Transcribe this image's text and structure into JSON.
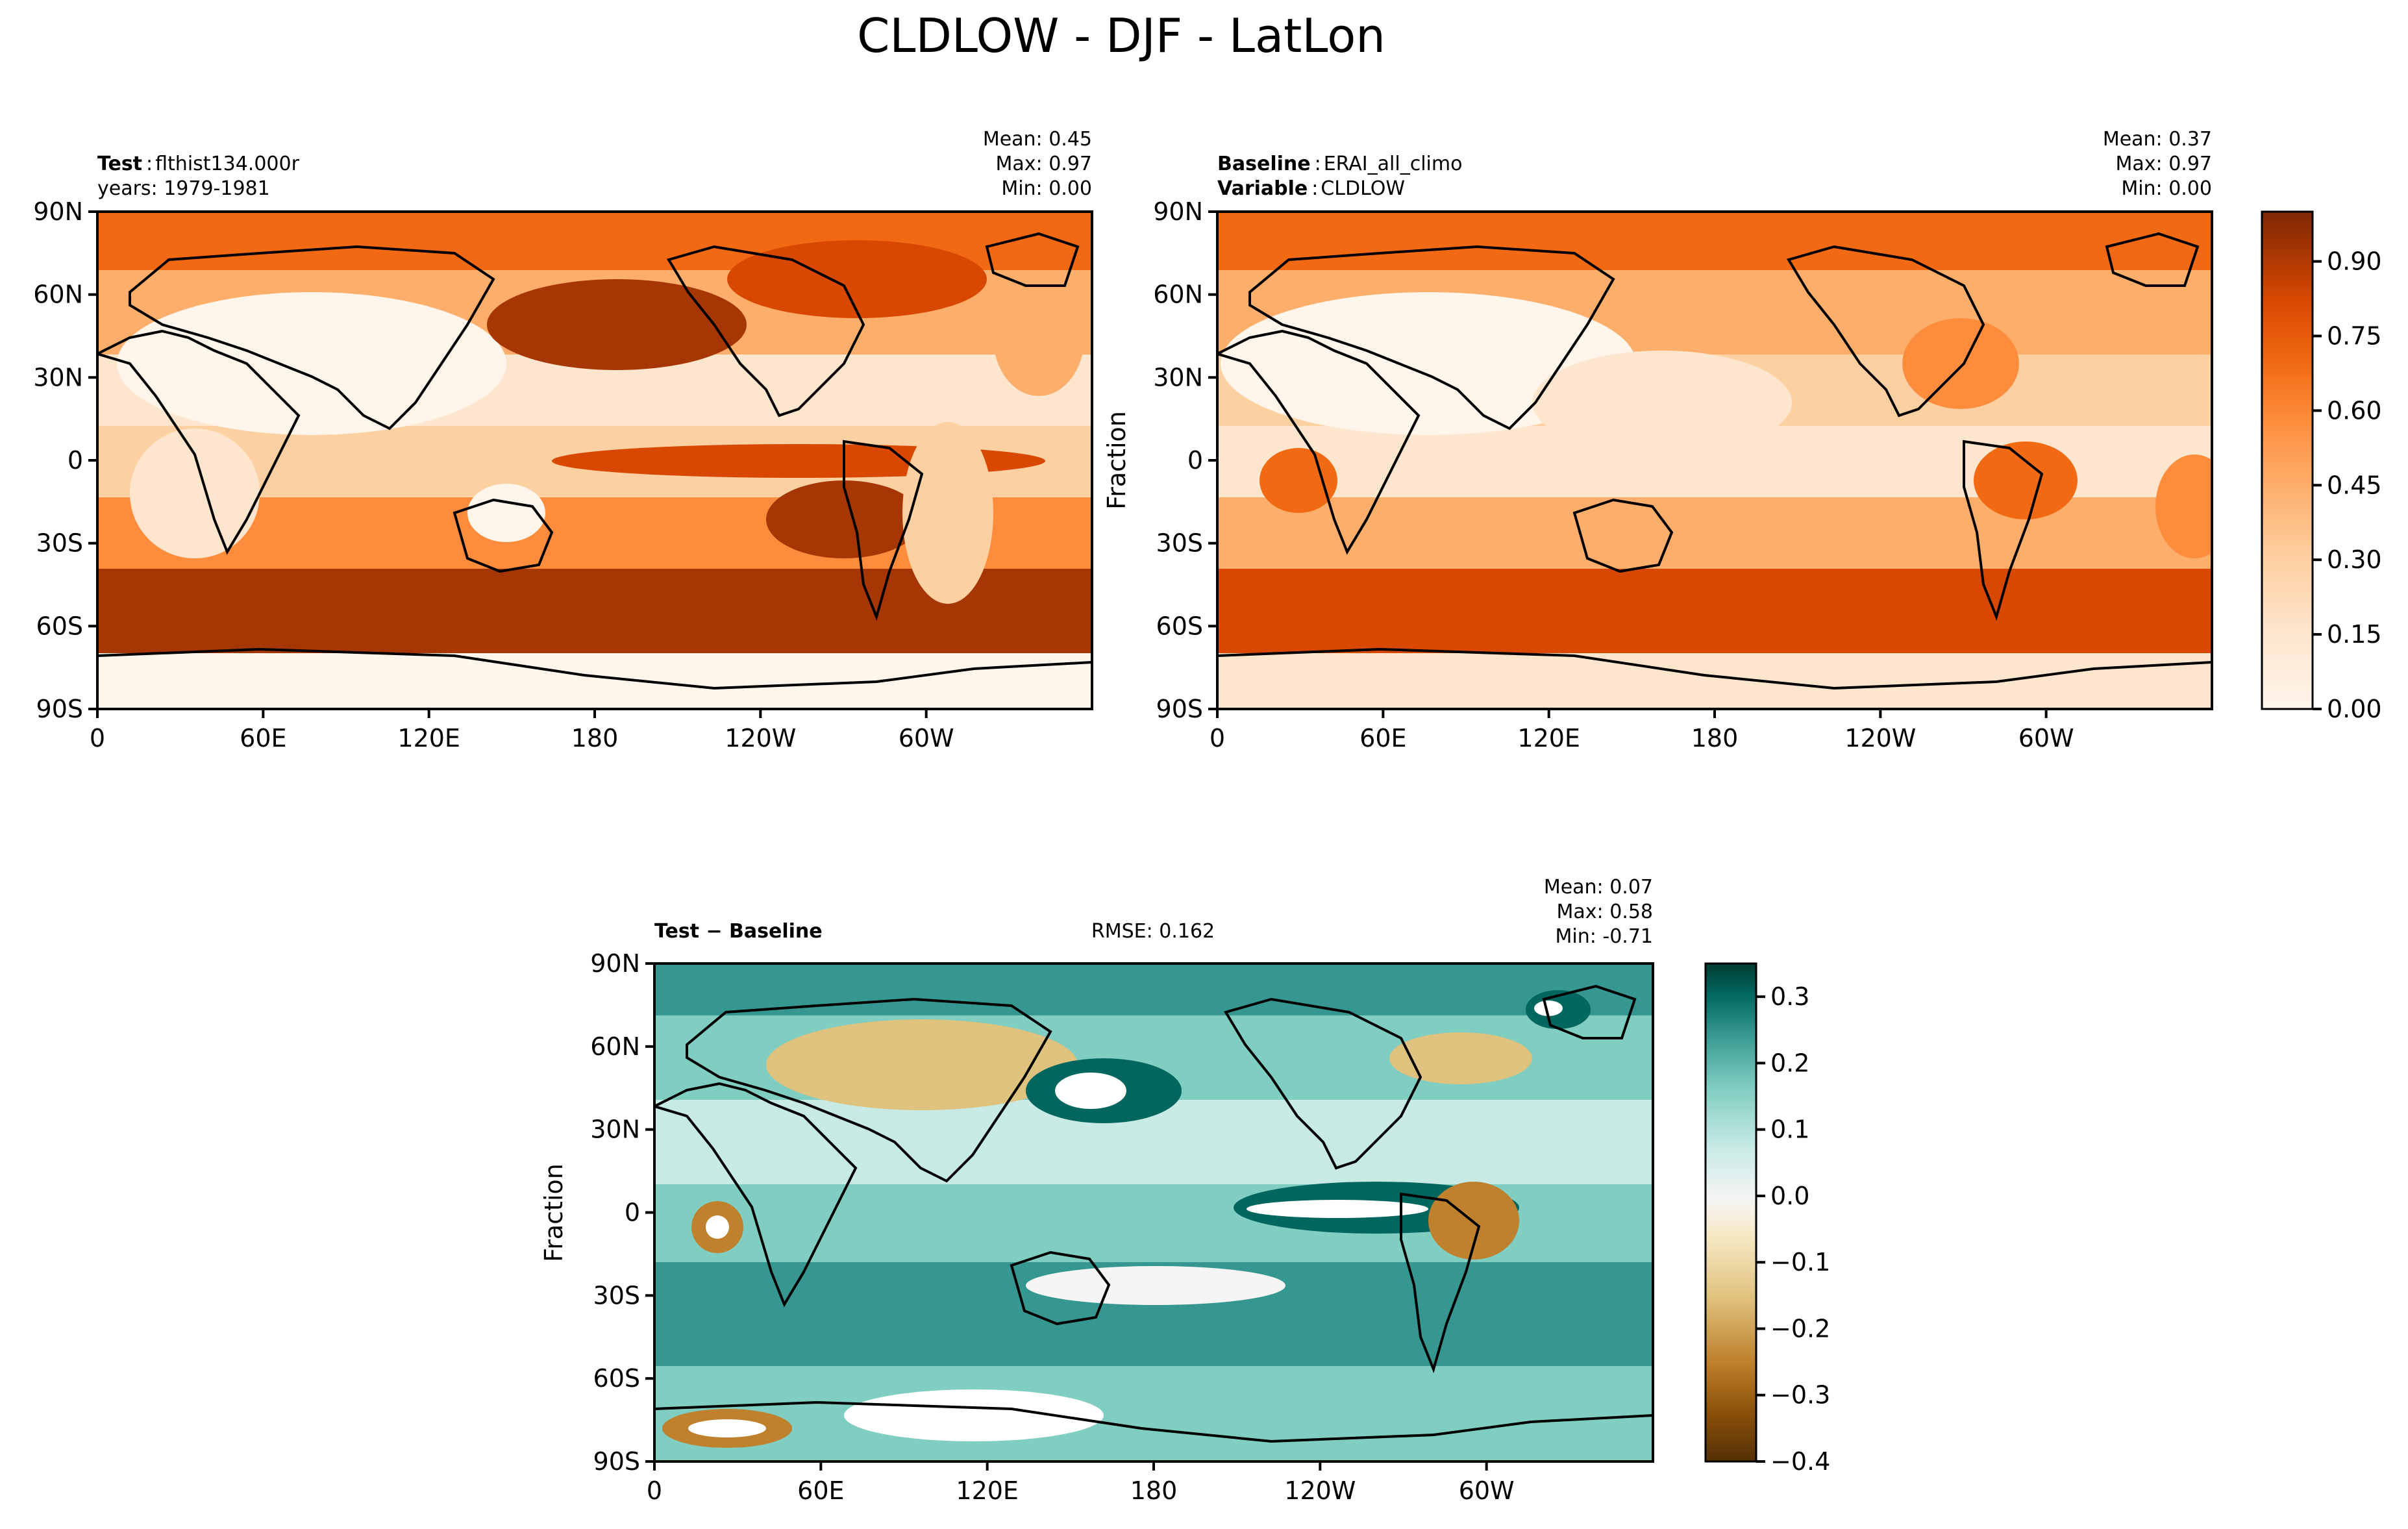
{
  "figure": {
    "title": "CLDLOW - DJF - LatLon"
  },
  "axes_ticks": {
    "lat": [
      "90N",
      "60N",
      "30N",
      "0",
      "30S",
      "60S",
      "90S"
    ],
    "lon": [
      "0",
      "60E",
      "120E",
      "180",
      "120W",
      "60W"
    ]
  },
  "panels": {
    "test": {
      "label_bold": "Test",
      "label_sep": ":",
      "label_value": "flthist134.000r",
      "line2": "years: 1979-1981",
      "stats": {
        "mean": "Mean:  0.45",
        "max": "Max:  0.97",
        "min": "Min:  0.00"
      }
    },
    "baseline": {
      "label_bold": "Baseline",
      "label_sep": ":",
      "label_value": "ERAI_all_climo",
      "line2_bold": "Variable",
      "line2_sep": ":",
      "line2_value": "CLDLOW",
      "ylabel": "Fraction",
      "stats": {
        "mean": "Mean:  0.37",
        "max": "Max:  0.97",
        "min": "Min:  0.00"
      }
    },
    "diff": {
      "label": "Test − Baseline",
      "rmse": "RMSE: 0.162",
      "ylabel": "Fraction",
      "stats": {
        "mean": "Mean:  0.07",
        "max": "Max:  0.58",
        "min": "Min: -0.71"
      }
    }
  },
  "colorbars": {
    "top": {
      "ticks": [
        "0.90",
        "0.75",
        "0.60",
        "0.45",
        "0.30",
        "0.15",
        "0.00"
      ]
    },
    "bottom": {
      "ticks": [
        "0.3",
        "0.2",
        "0.1",
        "0.0",
        "−0.1",
        "−0.2",
        "−0.3",
        "−0.4"
      ]
    }
  },
  "chart_data": [
    {
      "type": "heatmap",
      "panel": "test",
      "variable": "CLDLOW",
      "colormap": "Oranges",
      "clim": [
        0,
        1
      ],
      "y_ticks": [
        "90N",
        "60N",
        "30N",
        "0",
        "30S",
        "60S",
        "90S"
      ],
      "x_ticks": [
        "0",
        "60E",
        "120E",
        "180",
        "120W",
        "60W"
      ],
      "stats": {
        "mean": 0.45,
        "max": 0.97,
        "min": 0.0
      }
    },
    {
      "type": "heatmap",
      "panel": "baseline",
      "variable": "CLDLOW",
      "colormap": "Oranges",
      "clim": [
        0,
        1
      ],
      "y_ticks": [
        "90N",
        "60N",
        "30N",
        "0",
        "30S",
        "60S",
        "90S"
      ],
      "x_ticks": [
        "0",
        "60E",
        "120E",
        "180",
        "120W",
        "60W"
      ],
      "stats": {
        "mean": 0.37,
        "max": 0.97,
        "min": 0.0
      }
    },
    {
      "type": "heatmap",
      "panel": "diff",
      "variable": "CLDLOW",
      "colormap": "BrBG",
      "clim": [
        -0.4,
        0.35
      ],
      "y_ticks": [
        "90N",
        "60N",
        "30N",
        "0",
        "30S",
        "60S",
        "90S"
      ],
      "x_ticks": [
        "0",
        "60E",
        "120E",
        "180",
        "120W",
        "60W"
      ],
      "stats": {
        "mean": 0.07,
        "max": 0.58,
        "min": -0.71,
        "rmse": 0.162
      }
    }
  ],
  "colors": {
    "oranges": [
      "#fff5eb",
      "#fee6ce",
      "#fdd0a2",
      "#fdae6b",
      "#fd8d3c",
      "#f16913",
      "#d94801",
      "#a63603",
      "#7f2704"
    ],
    "brbg": [
      "#543005",
      "#8c510a",
      "#bf812d",
      "#dfc27d",
      "#f6e8c3",
      "#f5f5f5",
      "#c7eae5",
      "#80cdc1",
      "#35978f",
      "#01665e",
      "#003c30"
    ]
  }
}
